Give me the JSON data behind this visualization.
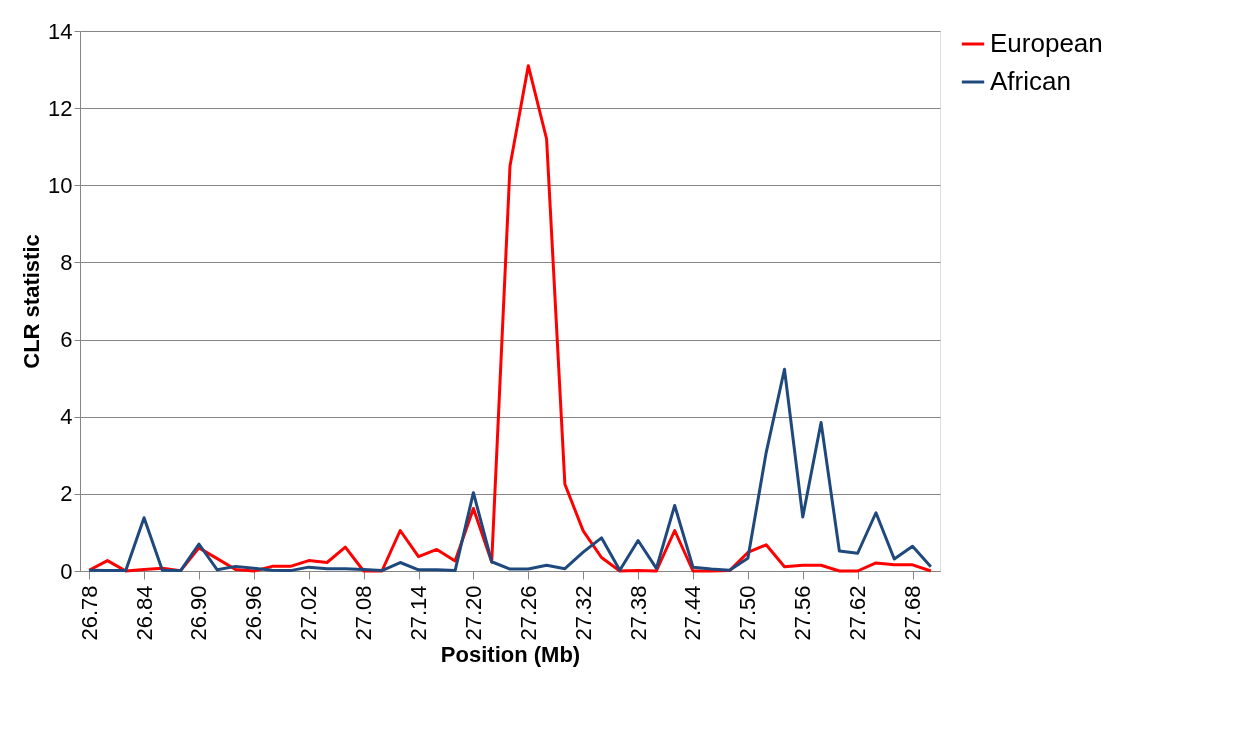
{
  "chart_data": {
    "type": "line",
    "xlabel": "Position (Mb)",
    "ylabel": "CLR statistic",
    "categories": [
      "26.78",
      null,
      null,
      "26.84",
      null,
      null,
      "26.90",
      null,
      null,
      "26.96",
      null,
      null,
      "27.02",
      null,
      null,
      "27.08",
      null,
      null,
      "27.14",
      null,
      null,
      "27.20",
      null,
      null,
      "27.26",
      null,
      null,
      "27.32",
      null,
      null,
      "27.38",
      null,
      null,
      "27.44",
      null,
      null,
      "27.50",
      null,
      null,
      "27.56",
      null,
      null,
      "27.62",
      null,
      null,
      "27.68",
      null
    ],
    "series": [
      {
        "name": "European",
        "color": "#ff0000",
        "values": [
          0.02,
          0.27,
          0,
          0.04,
          0.07,
          0.01,
          0.6,
          0.32,
          0.04,
          0,
          0.12,
          0.12,
          0.27,
          0.22,
          0.62,
          0,
          0,
          1.05,
          0.37,
          0.56,
          0.26,
          1.62,
          0.23,
          10.5,
          13.1,
          11.2,
          2.25,
          1.04,
          0.35,
          0,
          0.01,
          0,
          1.05,
          0,
          0,
          0.01,
          0.48,
          0.68,
          0.11,
          0.15,
          0.15,
          0,
          0,
          0.21,
          0.16,
          0.16,
          0
        ]
      },
      {
        "name": "African",
        "color": "#1f497d",
        "values": [
          0.02,
          0.01,
          0.01,
          1.38,
          0.02,
          0.01,
          0.7,
          0.03,
          0.12,
          0.07,
          0.02,
          0.01,
          0.1,
          0.06,
          0.06,
          0.04,
          0.01,
          0.22,
          0.03,
          0.03,
          0.01,
          2.03,
          0.24,
          0.05,
          0.05,
          0.15,
          0.06,
          0.49,
          0.86,
          0.02,
          0.79,
          0.07,
          1.7,
          0.1,
          0.05,
          0.02,
          0.33,
          3.07,
          5.23,
          1.4,
          3.85,
          0.52,
          0.46,
          1.51,
          0.31,
          0.64,
          0.11
        ]
      }
    ],
    "ylim": [
      0,
      14
    ],
    "yticks": [
      0,
      2,
      4,
      6,
      8,
      10,
      12,
      14
    ],
    "grid": "y",
    "legend": "right",
    "marker": "none",
    "line_style": "solid"
  }
}
